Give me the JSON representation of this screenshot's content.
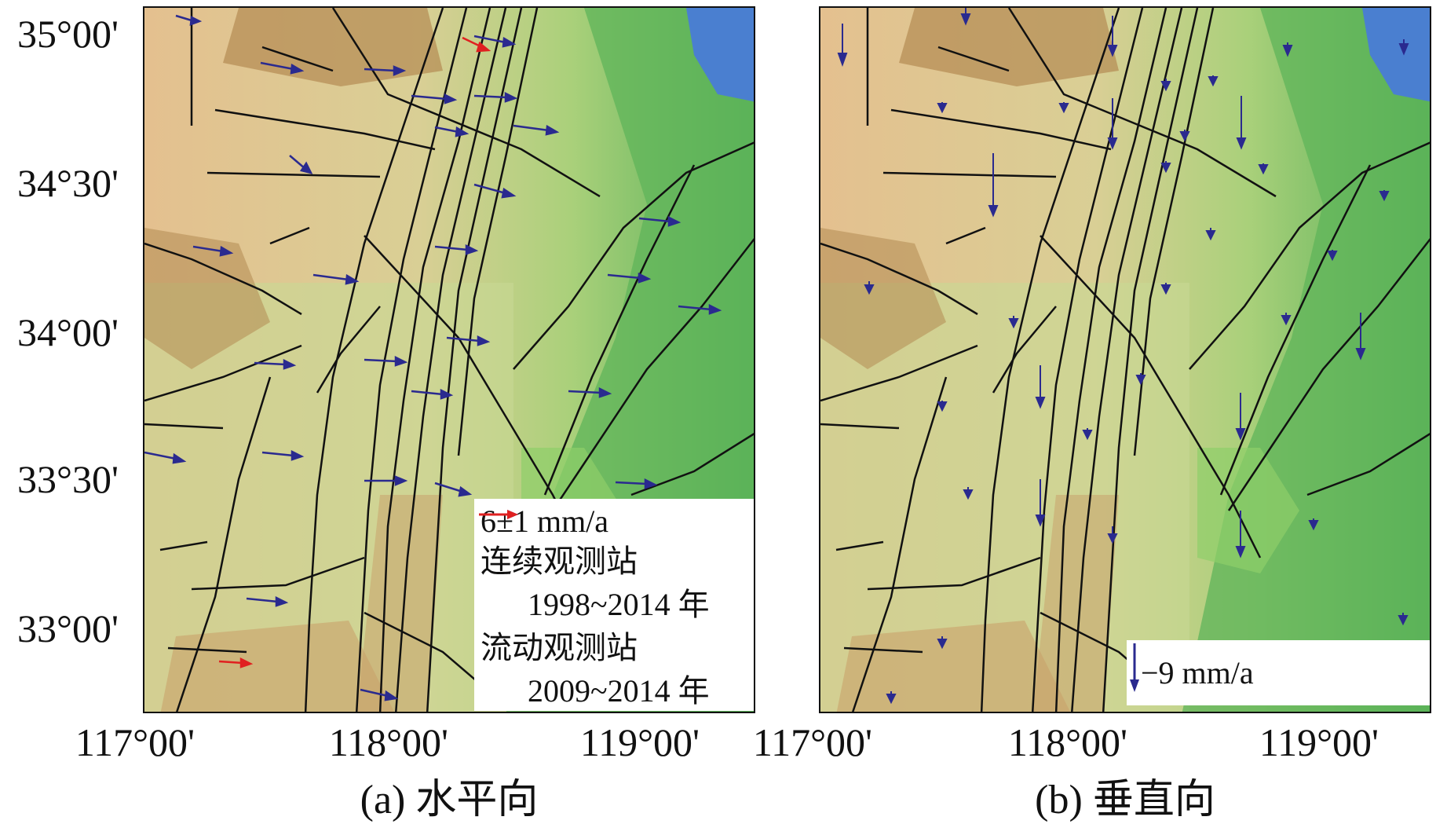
{
  "map": {
    "lat_labels": [
      "35°00'",
      "34°30'",
      "34°00'",
      "33°30'",
      "33°00'"
    ],
    "lon_labels": [
      "117°00'",
      "118°00'",
      "119°00'"
    ],
    "colors": {
      "frame": "#111111",
      "fault": "#111111",
      "continuous_station": "#2a2a8f",
      "mobile_station": "#e02020",
      "lowland": "#8fcf6a",
      "plain": "#c9d79a",
      "upland": "#e8c394",
      "hills": "#b38a52",
      "coastal": "#2f9a4a",
      "water": "#4a7fd0"
    }
  },
  "panels": [
    {
      "caption": "(a) 水平向",
      "legend": {
        "rate": "6±1 mm/a",
        "continuous_label": "连续观测站",
        "continuous_period": "1998~2014 年",
        "mobile_label": "流动观测站",
        "mobile_period": "2009~2014 年"
      }
    },
    {
      "caption": "(b) 垂直向",
      "legend": {
        "rate": "−9 mm/a"
      }
    }
  ]
}
